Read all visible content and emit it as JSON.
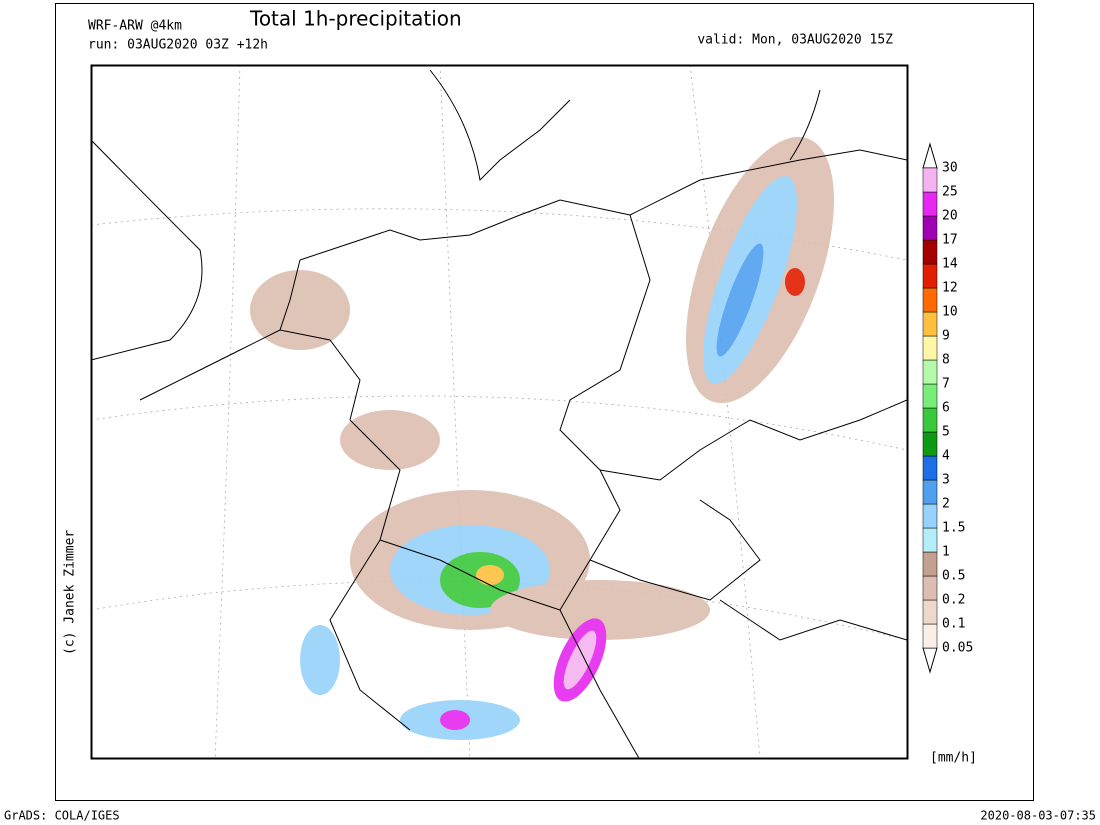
{
  "header": {
    "model": "WRF-ARW @4km",
    "title": "Total 1h-precipitation",
    "run": "run: 03AUG2020 03Z +12h",
    "valid": "valid: Mon, 03AUG2020 15Z"
  },
  "colorbar": {
    "levels": [
      0.05,
      0.1,
      0.2,
      0.5,
      1,
      1.5,
      2,
      3,
      4,
      5,
      6,
      7,
      8,
      9,
      10,
      12,
      14,
      17,
      20,
      25,
      30
    ],
    "colors": [
      "#fbeee6",
      "#eed8cc",
      "#dcbeb0",
      "#c4a090",
      "#b4eefa",
      "#96d2fa",
      "#50a0f0",
      "#1e6ee6",
      "#0f9a14",
      "#3cc83c",
      "#78ee78",
      "#b4faaa",
      "#fff6a8",
      "#ffc040",
      "#ff6a00",
      "#e11e00",
      "#a50000",
      "#a000b4",
      "#e628f0",
      "#f5b4f0"
    ],
    "unit": "[mm/h]"
  },
  "credit": "(c) Janek Zimmer",
  "footer": {
    "left": "GrADS: COLA/IGES",
    "right": "2020-08-03-07:35"
  }
}
